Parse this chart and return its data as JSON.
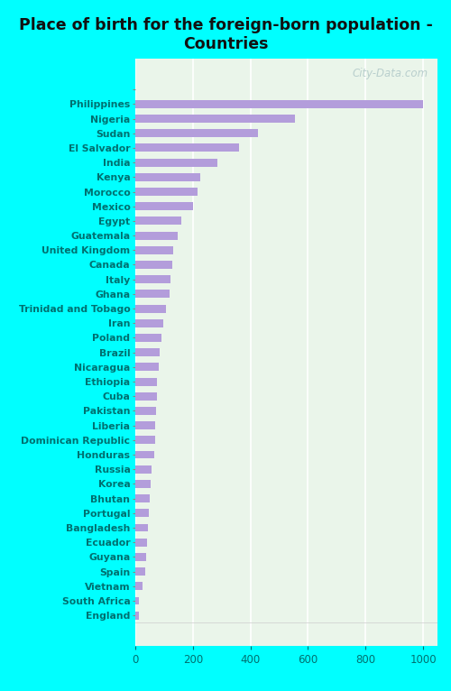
{
  "title": "Place of birth for the foreign-born population -\nCountries",
  "categories": [
    "",
    "Philippines",
    "Nigeria",
    "Sudan",
    "El Salvador",
    "India",
    "Kenya",
    "Morocco",
    "Mexico",
    "Egypt",
    "Guatemala",
    "United Kingdom",
    "Canada",
    "Italy",
    "Ghana",
    "Trinidad and Tobago",
    "Iran",
    "Poland",
    "Brazil",
    "Nicaragua",
    "Ethiopia",
    "Cuba",
    "Pakistan",
    "Liberia",
    "Dominican Republic",
    "Honduras",
    "Russia",
    "Korea",
    "Bhutan",
    "Portugal",
    "Bangladesh",
    "Ecuador",
    "Guyana",
    "Spain",
    "Vietnam",
    "South Africa",
    "England"
  ],
  "values": [
    0,
    1000,
    555,
    425,
    360,
    285,
    225,
    215,
    200,
    160,
    148,
    133,
    128,
    123,
    120,
    105,
    96,
    90,
    85,
    82,
    76,
    74,
    72,
    70,
    68,
    66,
    55,
    52,
    50,
    47,
    45,
    40,
    38,
    35,
    25,
    14,
    12
  ],
  "bar_color": "#b39ddb",
  "background_color_fig": "#00ffff",
  "background_color_plot": "#eaf5ea",
  "title_color": "#111111",
  "label_color": "#007070",
  "tick_color": "#007070",
  "watermark": "City-Data.com",
  "xlim": [
    0,
    1050
  ],
  "xticks": [
    0,
    200,
    400,
    600,
    800,
    1000
  ],
  "title_fontsize": 12.5,
  "label_fontsize": 7.8,
  "tick_fontsize": 8.5
}
